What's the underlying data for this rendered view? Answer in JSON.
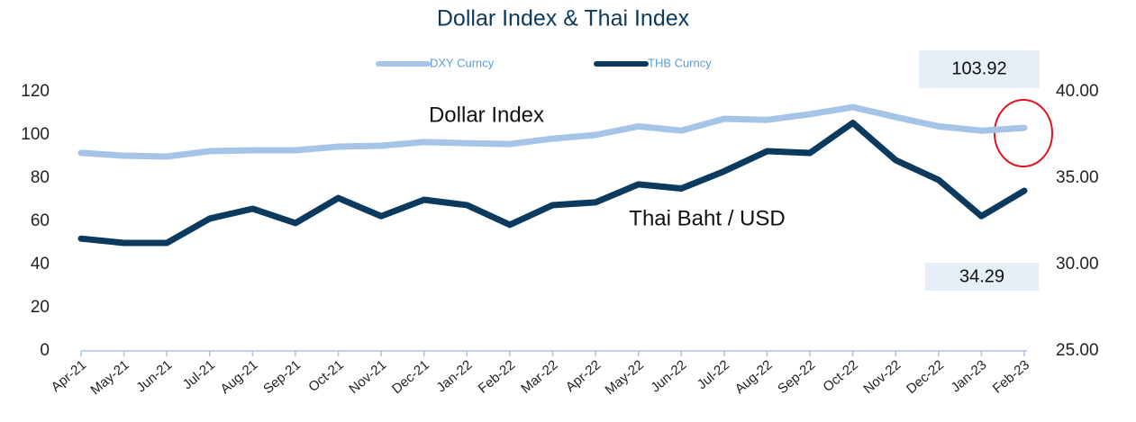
{
  "chart_data": {
    "type": "line",
    "title": "Dollar Index & Thai Index",
    "categories": [
      "Apr-21",
      "May-21",
      "Jun-21",
      "Jul-21",
      "Aug-21",
      "Sep-21",
      "Oct-21",
      "Nov-21",
      "Dec-21",
      "Jan-22",
      "Feb-22",
      "Mar-22",
      "Apr-22",
      "May-22",
      "Jun-22",
      "Jul-22",
      "Aug-22",
      "Sep-22",
      "Oct-22",
      "Nov-22",
      "Dec-22",
      "Jan-23",
      "Feb-23"
    ],
    "series": [
      {
        "name": "DXY Curncy",
        "color": "#a6c4e8",
        "axis": "y",
        "values": [
          91.7,
          90.4,
          90,
          92.5,
          92.9,
          92.9,
          94.6,
          95,
          96.7,
          96.2,
          95.8,
          98.3,
          100,
          104,
          102,
          107.5,
          107,
          109.6,
          112.9,
          108.3,
          104,
          102,
          103.3
        ]
      },
      {
        "name": "THB Curncy",
        "color": "#0b3a5e",
        "axis": "y2",
        "values": [
          31.5,
          31.25,
          31.25,
          32.66,
          33.23,
          32.4,
          33.85,
          32.8,
          33.75,
          33.44,
          32.3,
          33.44,
          33.6,
          34.64,
          34.4,
          35.4,
          36.56,
          36.46,
          38.2,
          36.04,
          34.9,
          32.8,
          34.27
        ]
      }
    ],
    "ylim": [
      0,
      120
    ],
    "yticks": [
      0,
      20,
      40,
      60,
      80,
      100,
      120
    ],
    "y2lim": [
      25,
      40
    ],
    "y2ticks": [
      {
        "value": 25,
        "label": "25.00"
      },
      {
        "value": 30,
        "label": "30.00"
      },
      {
        "value": 35,
        "label": "35.00"
      },
      {
        "value": 40,
        "label": "40.00"
      }
    ],
    "annotations": [
      "Dollar Index",
      "Thai Baht / USD",
      "103.92",
      "34.29"
    ]
  }
}
